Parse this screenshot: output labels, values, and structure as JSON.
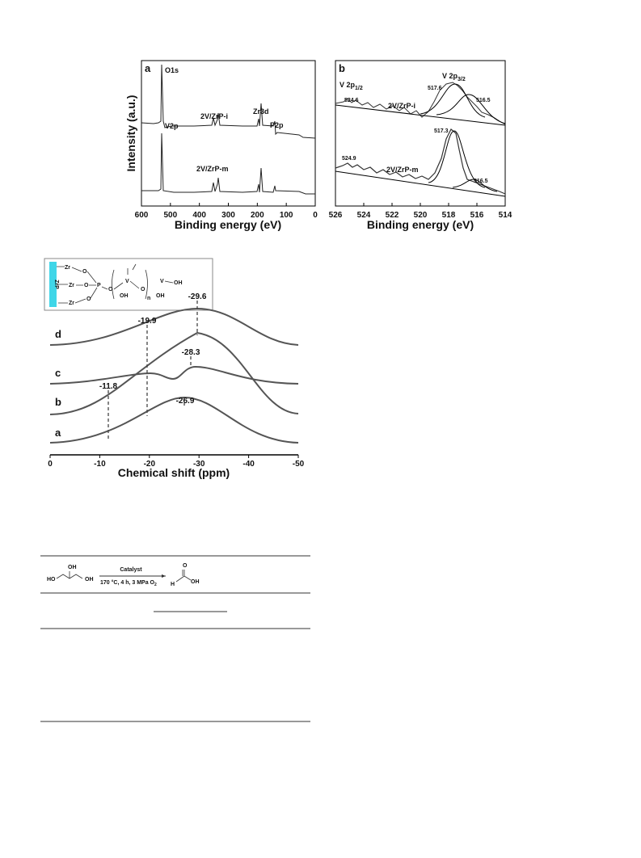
{
  "figure1": {
    "panel_a": {
      "label": "a",
      "xlabel": "Binding energy (eV)",
      "ylabel": "Intensity (a.u.)",
      "xlim": [
        600,
        0
      ],
      "xticks": [
        600,
        500,
        400,
        300,
        200,
        100,
        0
      ],
      "annotations": [
        "O1s",
        "V2p",
        "2V/ZrP-i",
        "Zr3d",
        "P2p",
        "2V/ZrP-m"
      ]
    },
    "panel_b": {
      "label": "b",
      "xlabel": "Binding energy (eV)",
      "xlim": [
        526,
        514
      ],
      "xticks": [
        526,
        524,
        522,
        520,
        518,
        516,
        514
      ],
      "annotations": {
        "v2p12": [
          "V 2p",
          "1/2"
        ],
        "v2p32": [
          "V 2p",
          "3/2"
        ],
        "peaks_i": [
          "524.6",
          "517.6",
          "516.5"
        ],
        "sample_i": "2V/ZrP-i",
        "peaks_m": [
          "524.9",
          "517.3",
          "516.5"
        ],
        "sample_m": "2V/ZrP-m"
      }
    }
  },
  "figure2": {
    "xlabel": "Chemical shift (ppm)",
    "xlim": [
      0,
      -50
    ],
    "xticks": [
      0,
      -10,
      -20,
      -30,
      -40,
      -50
    ],
    "curve_labels": [
      "d",
      "c",
      "b",
      "a"
    ],
    "peak_labels": [
      "-29.6",
      "-19.9",
      "-28.3",
      "-11.8",
      "-26.9"
    ],
    "inset": {
      "support": "ZrP",
      "zr": "Zr",
      "o": "O",
      "p": "P",
      "v": "V",
      "oh": "OH",
      "n": "n"
    }
  },
  "table": {
    "scheme": {
      "reactant_oh1": "OH",
      "reactant_ho": "HO",
      "reactant_oh2": "OH",
      "reagent": "Catalyst",
      "conditions": [
        "170 °C, 4 h, 3 MPa O",
        "2"
      ],
      "product_o": "O",
      "product_h": "H",
      "product_oh": "OH"
    }
  }
}
